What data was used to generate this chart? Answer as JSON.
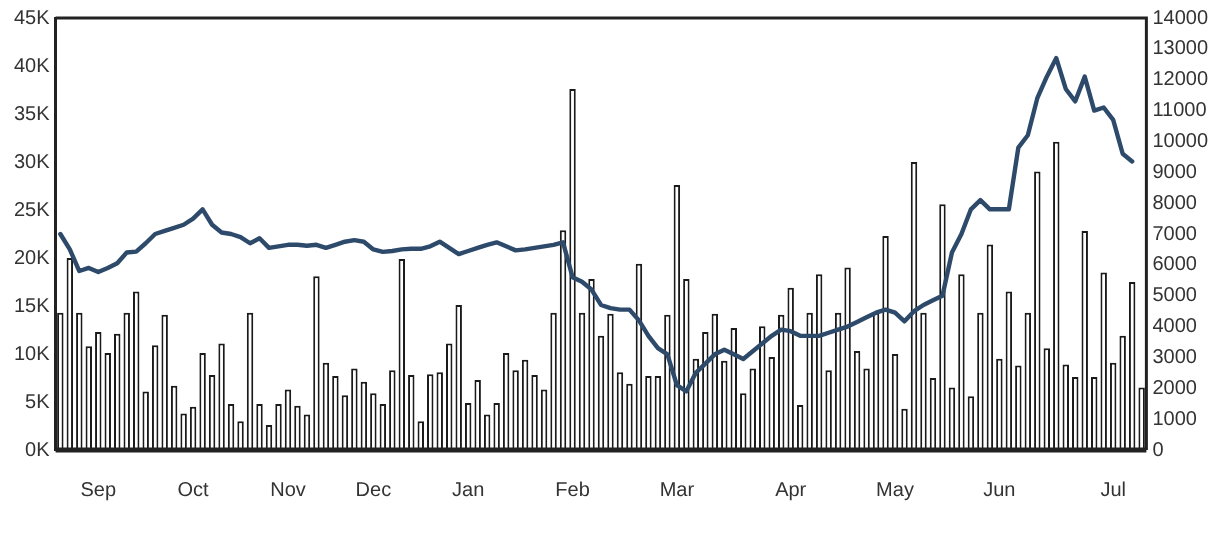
{
  "chart_data": {
    "type": "bar",
    "categories": [
      null,
      null,
      null,
      null,
      "Sep",
      null,
      null,
      null,
      null,
      null,
      null,
      null,
      null,
      null,
      "Oct",
      null,
      null,
      null,
      null,
      null,
      null,
      null,
      null,
      null,
      "Nov",
      null,
      null,
      null,
      null,
      null,
      null,
      null,
      null,
      "Dec",
      null,
      null,
      null,
      null,
      null,
      null,
      null,
      null,
      null,
      "Jan",
      null,
      null,
      null,
      null,
      null,
      null,
      null,
      null,
      null,
      null,
      "Feb",
      null,
      null,
      null,
      null,
      null,
      null,
      null,
      null,
      null,
      null,
      "Mar",
      null,
      null,
      null,
      null,
      null,
      null,
      null,
      null,
      null,
      null,
      null,
      "Apr",
      null,
      null,
      null,
      null,
      null,
      null,
      null,
      null,
      null,
      null,
      "May",
      null,
      null,
      null,
      null,
      null,
      null,
      null,
      null,
      null,
      null,
      "Jun",
      null,
      null,
      null,
      null,
      null,
      null,
      null,
      null,
      null,
      null,
      null,
      "Jul",
      null,
      null,
      null
    ],
    "series": [
      {
        "color": "#ffffff",
        "values": [
          14.3,
          20,
          14.3,
          10.8,
          12.3,
          10.1,
          12.1,
          14.3,
          16.5,
          6.1,
          10.9,
          14.1,
          6.7,
          3.8,
          4.5,
          10.1,
          7.8,
          11.1,
          4.8,
          3,
          14.3,
          4.8,
          2.6,
          4.8,
          6.3,
          4.6,
          3.7,
          18.1,
          9.1,
          7.7,
          5.7,
          8.5,
          7.1,
          5.9,
          4.8,
          8.3,
          19.9,
          7.8,
          3,
          7.9,
          8.1,
          11.1,
          15.1,
          4.9,
          7.3,
          3.7,
          4.9,
          10.1,
          8.3,
          9.4,
          7.8,
          6.3,
          14.3,
          22.9,
          37.6,
          14.3,
          17.8,
          11.9,
          14.2,
          8.1,
          6.9,
          19.4,
          7.7,
          7.7,
          14.1,
          27.6,
          17.8,
          9.5,
          12.3,
          14.2,
          9.3,
          12.7,
          5.9,
          8.5,
          12.9,
          9.7,
          14.1,
          16.9,
          4.7,
          14.3,
          18.3,
          8.3,
          14.3,
          19,
          10.3,
          8.5,
          14.3,
          22.3,
          10,
          4.3,
          30,
          14.3,
          7.5,
          25.6,
          6.5,
          18.3,
          5.6,
          14.3,
          21.4,
          9.5,
          16.5,
          8.8,
          14.3,
          29,
          10.6,
          32.1,
          8.9,
          7.6,
          22.8,
          7.6,
          18.5,
          9.1,
          11.9,
          17.5,
          6.5
        ]
      },
      {
        "type": "line",
        "axis": "y2",
        "color": "#2e4a6b",
        "values": [
          7000,
          6500,
          5800,
          5900,
          5770,
          5900,
          6050,
          6400,
          6430,
          6700,
          7000,
          7100,
          7200,
          7300,
          7500,
          7800,
          7300,
          7050,
          7000,
          6900,
          6700,
          6860,
          6550,
          6600,
          6650,
          6650,
          6620,
          6650,
          6550,
          6650,
          6750,
          6800,
          6750,
          6500,
          6420,
          6450,
          6500,
          6520,
          6520,
          6600,
          6750,
          6550,
          6350,
          6450,
          6550,
          6650,
          6730,
          6600,
          6470,
          6500,
          6550,
          6600,
          6650,
          6730,
          5600,
          5450,
          5200,
          4700,
          4600,
          4550,
          4550,
          4200,
          3700,
          3300,
          3100,
          2100,
          1900,
          2500,
          2800,
          3100,
          3250,
          3100,
          2950,
          3200,
          3450,
          3700,
          3900,
          3850,
          3700,
          3700,
          3700,
          3800,
          3900,
          4000,
          4150,
          4300,
          4450,
          4550,
          4450,
          4170,
          4500,
          4700,
          4850,
          5000,
          6400,
          7000,
          7800,
          8100,
          7800,
          7800,
          7800,
          9800,
          10200,
          11400,
          12100,
          12700,
          11700,
          11300,
          12100,
          11000,
          11100,
          10700,
          9600,
          9350,
          null
        ]
      }
    ],
    "ylim": [
      0,
      45
    ],
    "yticks": [
      {
        "value": 0,
        "label": "0K"
      },
      {
        "value": 5,
        "label": "5K"
      },
      {
        "value": 10,
        "label": "10K"
      },
      {
        "value": 15,
        "label": "15K"
      },
      {
        "value": 20,
        "label": "20K"
      },
      {
        "value": 25,
        "label": "25K"
      },
      {
        "value": 30,
        "label": "30K"
      },
      {
        "value": 35,
        "label": "35K"
      },
      {
        "value": 40,
        "label": "40K"
      },
      {
        "value": 45,
        "label": "45K"
      }
    ],
    "y2lim": [
      0,
      14000
    ],
    "y2ticks": [
      0,
      1000,
      2000,
      3000,
      4000,
      5000,
      6000,
      7000,
      8000,
      9000,
      10000,
      11000,
      12000,
      13000,
      14000
    ],
    "grid": false,
    "legend": false,
    "marker": "none",
    "line_style": "solid"
  }
}
